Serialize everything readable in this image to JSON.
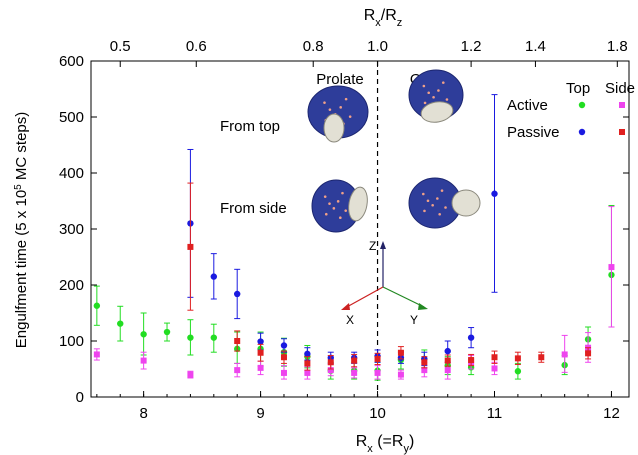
{
  "chart_data": {
    "type": "scatter",
    "xlabel_main": "R",
    "xlabel_sub": "x",
    "xlabel_rest": " (=R",
    "xlabel_sub2": "y",
    "xlabel_end": ")",
    "ylabel": "Engulfment time (5 x 10",
    "ylabel_sup": "5",
    "ylabel_end": " MC steps)",
    "top_label_a": "R",
    "top_label_a_sub": "x",
    "top_label_slash": "/R",
    "top_label_b_sub": "z",
    "xlim": [
      7.55,
      12.15
    ],
    "ylim": [
      0,
      600
    ],
    "xticks": [
      8,
      9,
      10,
      11,
      12
    ],
    "yticks": [
      0,
      100,
      200,
      300,
      400,
      500,
      600
    ],
    "top_ticks": [
      {
        "label": "0.5",
        "x": 7.8
      },
      {
        "label": "0.6",
        "x": 8.45
      },
      {
        "label": "0.8",
        "x": 9.45
      },
      {
        "label": "1.0",
        "x": 10.0
      },
      {
        "label": "1.2",
        "x": 10.8
      },
      {
        "label": "1.4",
        "x": 11.35
      },
      {
        "label": "1.8",
        "x": 12.05
      }
    ],
    "divider_x": 10,
    "grid": false,
    "legend": {
      "position": "top-right",
      "header_top": "Top",
      "header_side": "Side",
      "row_active": "Active",
      "row_passive": "Passive"
    },
    "annotations": {
      "prolate": "Prolate",
      "oblate": "Oblate",
      "from_top": "From top",
      "from_side": "From side",
      "axis_z": "Z",
      "axis_x": "X",
      "axis_y": "Y"
    },
    "colors": {
      "active_top": "#22dd22",
      "active_side": "#ee44ee",
      "passive_top": "#1a1ae0",
      "passive_side": "#e02020",
      "cell": "#2e3d9a",
      "particle": "#e2e0d4",
      "axis_x_arrow": "#cc2222",
      "axis_y_arrow": "#228822",
      "axis_z_arrow": "#222266"
    },
    "series": [
      {
        "name": "Active",
        "view": "Top",
        "color": "#22dd22",
        "points": [
          {
            "x": 7.6,
            "y": 163,
            "lo": 128,
            "hi": 198
          },
          {
            "x": 7.8,
            "y": 131,
            "lo": 100,
            "hi": 162
          },
          {
            "x": 8.0,
            "y": 112,
            "lo": 75,
            "hi": 150
          },
          {
            "x": 8.2,
            "y": 116,
            "lo": 100,
            "hi": 132
          },
          {
            "x": 8.4,
            "y": 106,
            "lo": 75,
            "hi": 138
          },
          {
            "x": 8.6,
            "y": 106,
            "lo": 80,
            "hi": 130
          },
          {
            "x": 8.8,
            "y": 86,
            "lo": 60,
            "hi": 116
          },
          {
            "x": 9.0,
            "y": 86,
            "lo": 55,
            "hi": 116
          },
          {
            "x": 9.2,
            "y": 80,
            "lo": 55,
            "hi": 105
          },
          {
            "x": 9.4,
            "y": 72,
            "lo": 52,
            "hi": 92
          },
          {
            "x": 9.6,
            "y": 47,
            "lo": 32,
            "hi": 62
          },
          {
            "x": 9.8,
            "y": 47,
            "lo": 32,
            "hi": 62
          },
          {
            "x": 10.0,
            "y": 47,
            "lo": 30,
            "hi": 62
          },
          {
            "x": 10.2,
            "y": 66,
            "lo": 50,
            "hi": 82
          },
          {
            "x": 10.4,
            "y": 68,
            "lo": 52,
            "hi": 84
          },
          {
            "x": 10.6,
            "y": 56,
            "lo": 40,
            "hi": 72
          },
          {
            "x": 10.8,
            "y": 53,
            "lo": 40,
            "hi": 68
          },
          {
            "x": 11.2,
            "y": 46,
            "lo": 32,
            "hi": 60
          },
          {
            "x": 11.6,
            "y": 57,
            "lo": 40,
            "hi": 74
          },
          {
            "x": 11.8,
            "y": 103,
            "lo": 80,
            "hi": 125
          },
          {
            "x": 12.0,
            "y": 218,
            "lo": 125,
            "hi": 342
          }
        ]
      },
      {
        "name": "Active",
        "view": "Side",
        "color": "#ee44ee",
        "points": [
          {
            "x": 7.6,
            "y": 76,
            "lo": 66,
            "hi": 86
          },
          {
            "x": 8.0,
            "y": 65,
            "lo": 50,
            "hi": 80
          },
          {
            "x": 8.4,
            "y": 40,
            "lo": 34,
            "hi": 46
          },
          {
            "x": 8.8,
            "y": 48,
            "lo": 36,
            "hi": 60
          },
          {
            "x": 9.0,
            "y": 52,
            "lo": 40,
            "hi": 64
          },
          {
            "x": 9.2,
            "y": 43,
            "lo": 32,
            "hi": 56
          },
          {
            "x": 9.4,
            "y": 43,
            "lo": 32,
            "hi": 54
          },
          {
            "x": 9.6,
            "y": 48,
            "lo": 38,
            "hi": 58
          },
          {
            "x": 9.8,
            "y": 43,
            "lo": 34,
            "hi": 52
          },
          {
            "x": 10.0,
            "y": 43,
            "lo": 32,
            "hi": 56
          },
          {
            "x": 10.2,
            "y": 40,
            "lo": 32,
            "hi": 48
          },
          {
            "x": 10.4,
            "y": 48,
            "lo": 36,
            "hi": 62
          },
          {
            "x": 10.6,
            "y": 48,
            "lo": 32,
            "hi": 62
          },
          {
            "x": 10.8,
            "y": 62,
            "lo": 50,
            "hi": 74
          },
          {
            "x": 11.0,
            "y": 51,
            "lo": 40,
            "hi": 62
          },
          {
            "x": 11.6,
            "y": 76,
            "lo": 44,
            "hi": 110
          },
          {
            "x": 11.8,
            "y": 88,
            "lo": 62,
            "hi": 115
          },
          {
            "x": 12.0,
            "y": 232,
            "lo": 125,
            "hi": 340
          }
        ]
      },
      {
        "name": "Passive",
        "view": "Top",
        "color": "#1a1ae0",
        "points": [
          {
            "x": 8.4,
            "y": 310,
            "lo": 178,
            "hi": 442
          },
          {
            "x": 8.6,
            "y": 215,
            "lo": 175,
            "hi": 256
          },
          {
            "x": 8.8,
            "y": 184,
            "lo": 140,
            "hi": 228
          },
          {
            "x": 9.0,
            "y": 99,
            "lo": 84,
            "hi": 114
          },
          {
            "x": 9.2,
            "y": 92,
            "lo": 80,
            "hi": 104
          },
          {
            "x": 9.4,
            "y": 77,
            "lo": 66,
            "hi": 88
          },
          {
            "x": 9.6,
            "y": 70,
            "lo": 60,
            "hi": 80
          },
          {
            "x": 9.8,
            "y": 70,
            "lo": 60,
            "hi": 80
          },
          {
            "x": 10.0,
            "y": 73,
            "lo": 62,
            "hi": 84
          },
          {
            "x": 10.2,
            "y": 70,
            "lo": 60,
            "hi": 80
          },
          {
            "x": 10.4,
            "y": 68,
            "lo": 56,
            "hi": 80
          },
          {
            "x": 10.6,
            "y": 82,
            "lo": 62,
            "hi": 100
          },
          {
            "x": 10.8,
            "y": 106,
            "lo": 88,
            "hi": 124
          },
          {
            "x": 11.0,
            "y": 363,
            "lo": 187,
            "hi": 540
          }
        ]
      },
      {
        "name": "Passive",
        "view": "Side",
        "color": "#e02020",
        "points": [
          {
            "x": 8.4,
            "y": 268,
            "lo": 155,
            "hi": 382
          },
          {
            "x": 8.8,
            "y": 100,
            "lo": 82,
            "hi": 118
          },
          {
            "x": 9.0,
            "y": 79,
            "lo": 64,
            "hi": 94
          },
          {
            "x": 9.2,
            "y": 71,
            "lo": 60,
            "hi": 82
          },
          {
            "x": 9.4,
            "y": 60,
            "lo": 48,
            "hi": 72
          },
          {
            "x": 9.6,
            "y": 62,
            "lo": 50,
            "hi": 74
          },
          {
            "x": 9.8,
            "y": 65,
            "lo": 54,
            "hi": 76
          },
          {
            "x": 10.0,
            "y": 68,
            "lo": 58,
            "hi": 78
          },
          {
            "x": 10.2,
            "y": 79,
            "lo": 68,
            "hi": 90
          },
          {
            "x": 10.4,
            "y": 62,
            "lo": 52,
            "hi": 72
          },
          {
            "x": 10.6,
            "y": 65,
            "lo": 55,
            "hi": 75
          },
          {
            "x": 10.8,
            "y": 66,
            "lo": 56,
            "hi": 76
          },
          {
            "x": 11.0,
            "y": 71,
            "lo": 60,
            "hi": 82
          },
          {
            "x": 11.2,
            "y": 69,
            "lo": 58,
            "hi": 80
          },
          {
            "x": 11.4,
            "y": 71,
            "lo": 62,
            "hi": 80
          },
          {
            "x": 11.8,
            "y": 78,
            "lo": 68,
            "hi": 88
          }
        ]
      }
    ]
  }
}
